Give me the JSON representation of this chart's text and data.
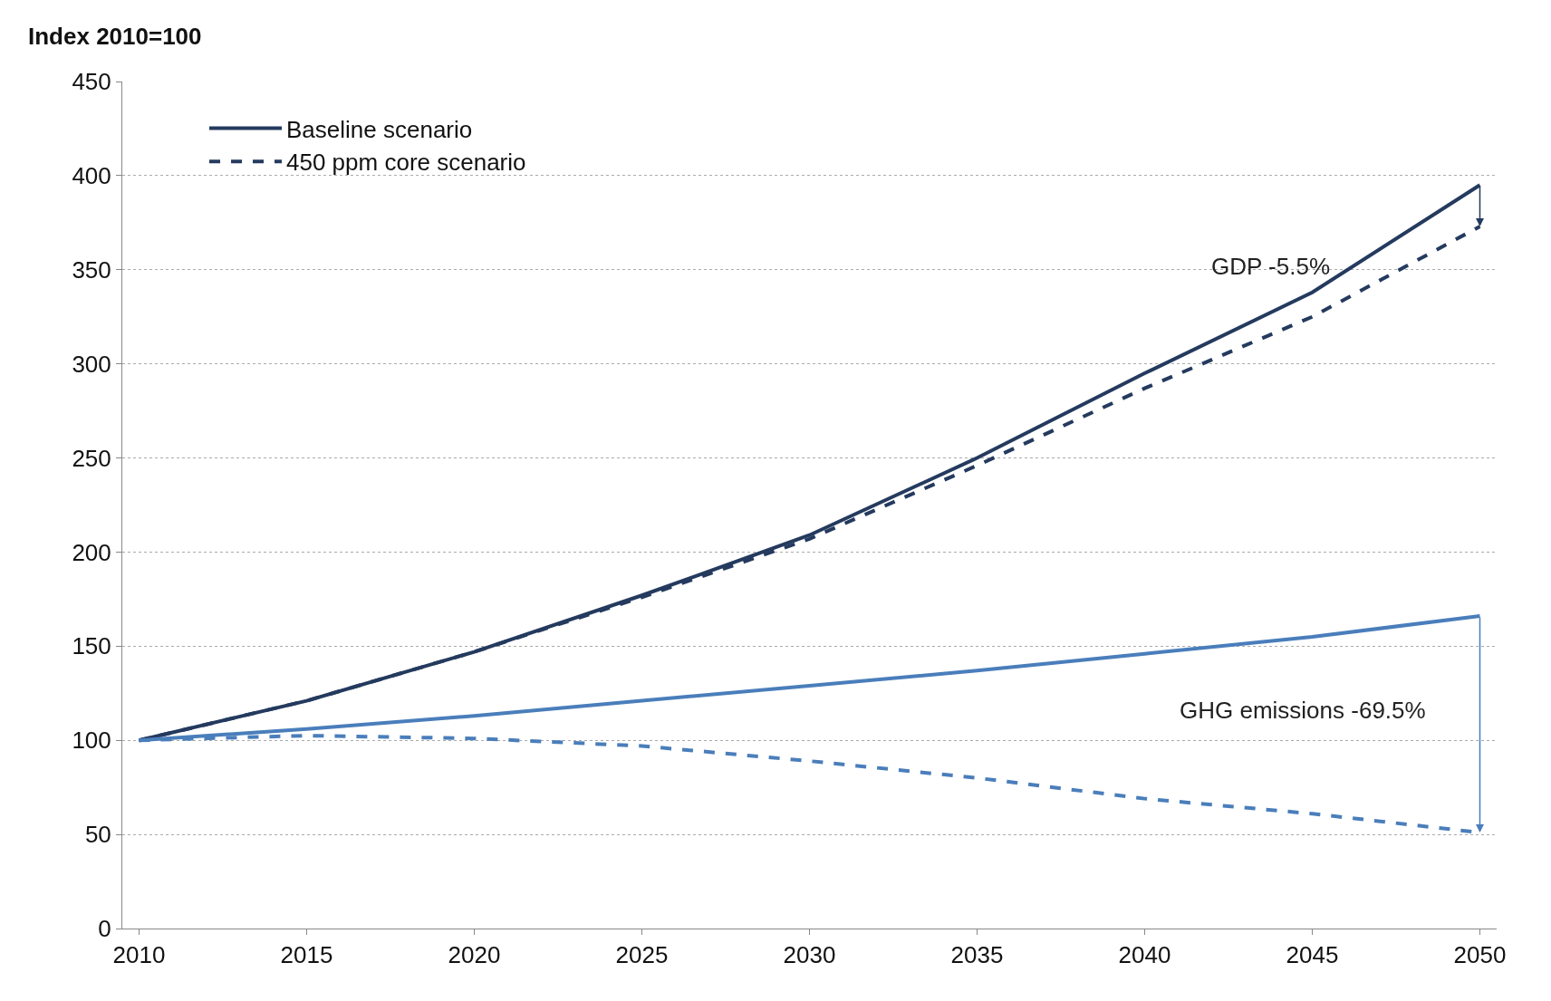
{
  "chart_data": {
    "type": "line",
    "ylabel": "Index 2010=100",
    "x": [
      2010,
      2015,
      2020,
      2025,
      2030,
      2035,
      2040,
      2045,
      2050
    ],
    "series": [
      {
        "name": "Baseline scenario",
        "color": "#243a5e",
        "line_style": "solid",
        "values": [
          100,
          121,
          147,
          177,
          209,
          250,
          295,
          338,
          395
        ]
      },
      {
        "name": "450 ppm core scenario",
        "color": "#243a5e",
        "line_style": "dashed",
        "values": [
          100,
          121,
          147,
          176,
          207,
          246,
          287,
          325,
          373
        ]
      },
      {
        "color": "#4a7ebb",
        "line_style": "solid",
        "values": [
          100,
          106,
          113,
          121,
          129,
          137,
          146,
          155,
          166
        ]
      },
      {
        "color": "#4a7ebb",
        "line_style": "dashed",
        "values": [
          100,
          102.5,
          101,
          97,
          89,
          80,
          69,
          61,
          51
        ]
      }
    ],
    "annotations": [
      "GDP -5.5%",
      "GHG emissions -69.5%"
    ],
    "xlim": [
      2009.5,
      2050.5
    ],
    "xticks": [
      2010,
      2015,
      2020,
      2025,
      2030,
      2035,
      2040,
      2045,
      2050
    ],
    "ylim": [
      0,
      450
    ],
    "yticks": [
      0,
      50,
      100,
      150,
      200,
      250,
      300,
      350,
      400,
      450
    ],
    "grid": "y",
    "legend": "top left"
  }
}
